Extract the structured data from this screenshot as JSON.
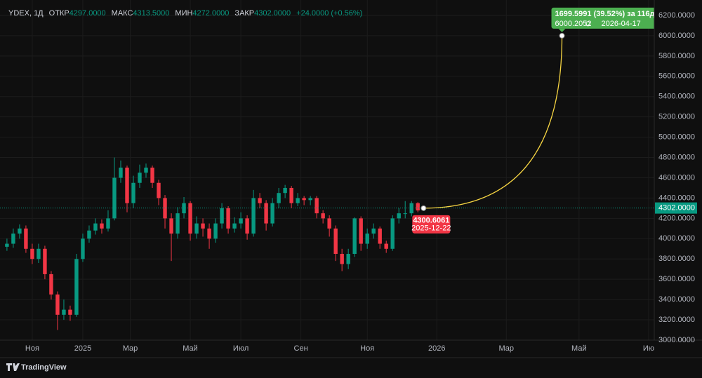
{
  "chart_data": {
    "type": "candlestick",
    "symbol": "YDEX, 1Д",
    "ohlc_legend": [
      {
        "label": "ОТКР",
        "value": "4297.0000"
      },
      {
        "label": "МАКС",
        "value": "4313.5000"
      },
      {
        "label": "МИН",
        "value": "4272.0000"
      },
      {
        "label": "ЗАКР",
        "value": "4302.0000"
      }
    ],
    "change": "+24.0000 (+0.56%)",
    "up_color": "#089981",
    "down_color": "#f23645",
    "open": [
      3920,
      3950,
      4050,
      4100,
      3900,
      3800,
      3900,
      3650,
      3450,
      3250,
      3300,
      3250,
      3800,
      4000,
      4080,
      4150,
      4100,
      4200,
      4600,
      4700,
      4350,
      4550,
      4650,
      4700,
      4550,
      4400,
      4200,
      4050,
      4250,
      4350,
      4050,
      4150,
      4100,
      4000,
      4150,
      4300,
      4100,
      4150,
      4200,
      4050,
      4400,
      4350,
      4150,
      4350,
      4450,
      4500,
      4350,
      4400,
      4380,
      4400,
      4250,
      4200,
      4100,
      3850,
      3750,
      3850,
      4200,
      3950,
      4050,
      4100,
      3950,
      3900,
      4200,
      4250,
      4250,
      4350,
      4297
    ],
    "high": [
      4000,
      4100,
      4140,
      4130,
      3950,
      3950,
      3930,
      3680,
      3480,
      3400,
      3340,
      3850,
      4050,
      4130,
      4200,
      4190,
      4280,
      4800,
      4770,
      4720,
      4620,
      4730,
      4740,
      4720,
      4580,
      4430,
      4250,
      4310,
      4410,
      4370,
      4220,
      4200,
      4150,
      4200,
      4350,
      4320,
      4210,
      4260,
      4230,
      4480,
      4450,
      4380,
      4400,
      4500,
      4530,
      4520,
      4450,
      4420,
      4420,
      4420,
      4280,
      4230,
      4130,
      3900,
      3900,
      4210,
      4220,
      4100,
      4150,
      4120,
      3980,
      4230,
      4300,
      4370,
      4370,
      4360,
      4313.5
    ],
    "low": [
      3880,
      3910,
      4000,
      3860,
      3750,
      3760,
      3600,
      3400,
      3100,
      3200,
      3190,
      3230,
      3770,
      3960,
      4040,
      4050,
      4070,
      4180,
      4550,
      4260,
      4300,
      4500,
      4600,
      4500,
      4330,
      4100,
      3780,
      4000,
      4200,
      3980,
      4000,
      4020,
      3900,
      3960,
      4100,
      4050,
      4060,
      4100,
      3990,
      4020,
      4300,
      4080,
      4120,
      4300,
      4400,
      4300,
      4320,
      4330,
      4330,
      4200,
      4150,
      4020,
      3780,
      3680,
      3700,
      3820,
      3880,
      3900,
      4000,
      3900,
      3860,
      3880,
      4150,
      4200,
      4220,
      4260,
      4272
    ],
    "close": [
      3950,
      4050,
      4100,
      3900,
      3800,
      3900,
      3650,
      3450,
      3250,
      3300,
      3250,
      3800,
      4000,
      4080,
      4150,
      4100,
      4200,
      4600,
      4700,
      4350,
      4550,
      4650,
      4700,
      4550,
      4400,
      4200,
      4050,
      4250,
      4350,
      4050,
      4150,
      4100,
      4000,
      4150,
      4300,
      4100,
      4150,
      4200,
      4050,
      4400,
      4350,
      4150,
      4350,
      4450,
      4500,
      4350,
      4400,
      4380,
      4400,
      4250,
      4200,
      4100,
      3850,
      3750,
      3850,
      4200,
      3950,
      4050,
      4100,
      3950,
      3900,
      4200,
      4250,
      4250,
      4350,
      4278,
      4302
    ],
    "last_price": 4302,
    "last_price_label": "4302.0000",
    "xlim": [
      -1.1,
      102.4
    ],
    "xticks": [
      {
        "value": 4,
        "label": "Ноя"
      },
      {
        "value": 12,
        "label": "2025"
      },
      {
        "value": 19.5,
        "label": "Мар"
      },
      {
        "value": 29,
        "label": "Май"
      },
      {
        "value": 37,
        "label": "Июл"
      },
      {
        "value": 46.5,
        "label": "Сен"
      },
      {
        "value": 57,
        "label": "Ноя"
      },
      {
        "value": 68,
        "label": "2026"
      },
      {
        "value": 79,
        "label": "Мар"
      },
      {
        "value": 90.5,
        "label": "Май"
      },
      {
        "value": 101.5,
        "label": "Ию"
      }
    ],
    "ylim": [
      3000,
      6352
    ],
    "yticks": [
      {
        "value": 3000,
        "label": "3000.0000"
      },
      {
        "value": 3200,
        "label": "3200.0000"
      },
      {
        "value": 3400,
        "label": "3400.0000"
      },
      {
        "value": 3600,
        "label": "3600.0000"
      },
      {
        "value": 3800,
        "label": "3800.0000"
      },
      {
        "value": 4000,
        "label": "4000.0000"
      },
      {
        "value": 4200,
        "label": "4200.0000"
      },
      {
        "value": 4400,
        "label": "4400.0000"
      },
      {
        "value": 4600,
        "label": "4600.0000"
      },
      {
        "value": 4800,
        "label": "4800.0000"
      },
      {
        "value": 5000,
        "label": "5000.0000"
      },
      {
        "value": 5200,
        "label": "5200.0000"
      },
      {
        "value": 5400,
        "label": "5400.0000"
      },
      {
        "value": 5600,
        "label": "5600.0000"
      },
      {
        "value": 5800,
        "label": "5800.0000"
      },
      {
        "value": 6000,
        "label": "6000.0000"
      },
      {
        "value": 6200,
        "label": "6200.0000"
      }
    ],
    "grid": true,
    "projection": {
      "color": "#f5d442",
      "start": {
        "x": 65.9,
        "value": 4300.6061,
        "date": "2025-12-22"
      },
      "end": {
        "x": 87.8,
        "value": 6000.2052,
        "date": "2026-04-17"
      },
      "measure": "1699.5991 (39.52%) за 116д"
    }
  },
  "footer": {
    "brand": "TradingView"
  }
}
